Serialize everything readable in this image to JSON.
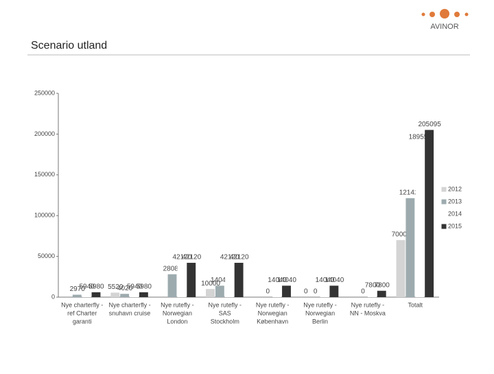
{
  "logo": "AVINOR",
  "chart_data": {
    "type": "bar",
    "title": "Scenario utland",
    "categories": [
      [
        "Nye charterfly -",
        "ref Charter",
        "garanti"
      ],
      [
        "Nye charterfly -",
        "snuhavn cruise"
      ],
      [
        "Nye rutefly -",
        "Norwegian",
        "London"
      ],
      [
        "Nye rutefly -",
        "SAS",
        "Stockholm"
      ],
      [
        "Nye rutefly -",
        "Norwegian",
        "København"
      ],
      [
        "Nye rutefly -",
        "Norwegian",
        "Berlin"
      ],
      [
        "Nye rutefly -",
        "NN - Moskva"
      ],
      [
        "Totalt"
      ]
    ],
    "series": [
      {
        "name": "2012",
        "color": "#d4d4d4",
        "values": [
          null,
          5520,
          null,
          10000,
          null,
          0,
          null,
          70000
        ]
      },
      {
        "name": "2013",
        "color": "#9dabaf",
        "values": [
          2970,
          4020,
          28080,
          14040,
          0,
          0,
          0,
          121423
        ]
      },
      {
        "name": "2014",
        "color": "#ffffff",
        "values": [
          5940,
          5940,
          42120,
          42120,
          14040,
          14040,
          7800,
          189550
        ]
      },
      {
        "name": "2015",
        "color": "#333333",
        "values": [
          5980,
          5980,
          42120,
          42120,
          14040,
          14040,
          7800,
          205095
        ]
      }
    ],
    "ylim": [
      0,
      250000
    ],
    "yticks": [
      0,
      50000,
      100000,
      150000,
      200000,
      250000
    ],
    "grid": false
  }
}
